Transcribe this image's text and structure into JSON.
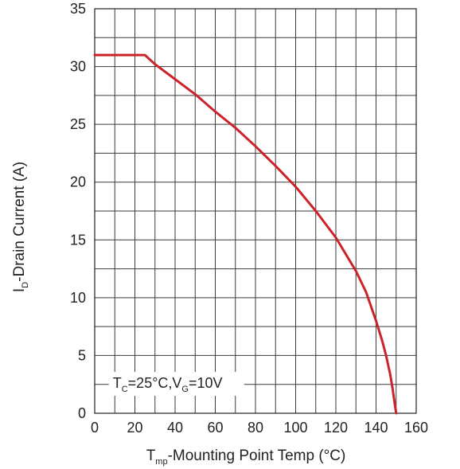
{
  "chart_data": {
    "type": "line",
    "title": "",
    "xlabel": {
      "main": "T",
      "sub": "mp",
      "rest": "-Mounting Point Temp (°C)"
    },
    "ylabel": {
      "main": "I",
      "sub": "D",
      "rest": "-Drain Current (A)"
    },
    "xlim": [
      0,
      160
    ],
    "ylim": [
      0,
      35
    ],
    "x_ticks": [
      0,
      20,
      40,
      60,
      80,
      100,
      120,
      140,
      160
    ],
    "y_ticks": [
      0,
      5,
      10,
      15,
      20,
      25,
      30,
      35
    ],
    "x_minor_step": 10,
    "y_minor_step": 2.5,
    "grid": true,
    "annotation": {
      "parts": [
        {
          "text": "T",
          "sub": false
        },
        {
          "text": "C",
          "sub": true
        },
        {
          "text": "=25°C,V",
          "sub": false
        },
        {
          "text": "G",
          "sub": true
        },
        {
          "text": "=10V",
          "sub": false
        }
      ],
      "x": 9,
      "y": 2.2
    },
    "series": [
      {
        "color": "#cc2229",
        "x": [
          0,
          25,
          30,
          40,
          50,
          60,
          70,
          80,
          90,
          100,
          110,
          120,
          130,
          135,
          140,
          143,
          145,
          147,
          148,
          149,
          150
        ],
        "y": [
          31,
          31,
          30.2,
          28.9,
          27.6,
          26.1,
          24.7,
          23.1,
          21.4,
          19.6,
          17.5,
          15.2,
          12.3,
          10.5,
          8.0,
          6.3,
          5.0,
          3.4,
          2.4,
          1.2,
          0
        ]
      }
    ]
  }
}
